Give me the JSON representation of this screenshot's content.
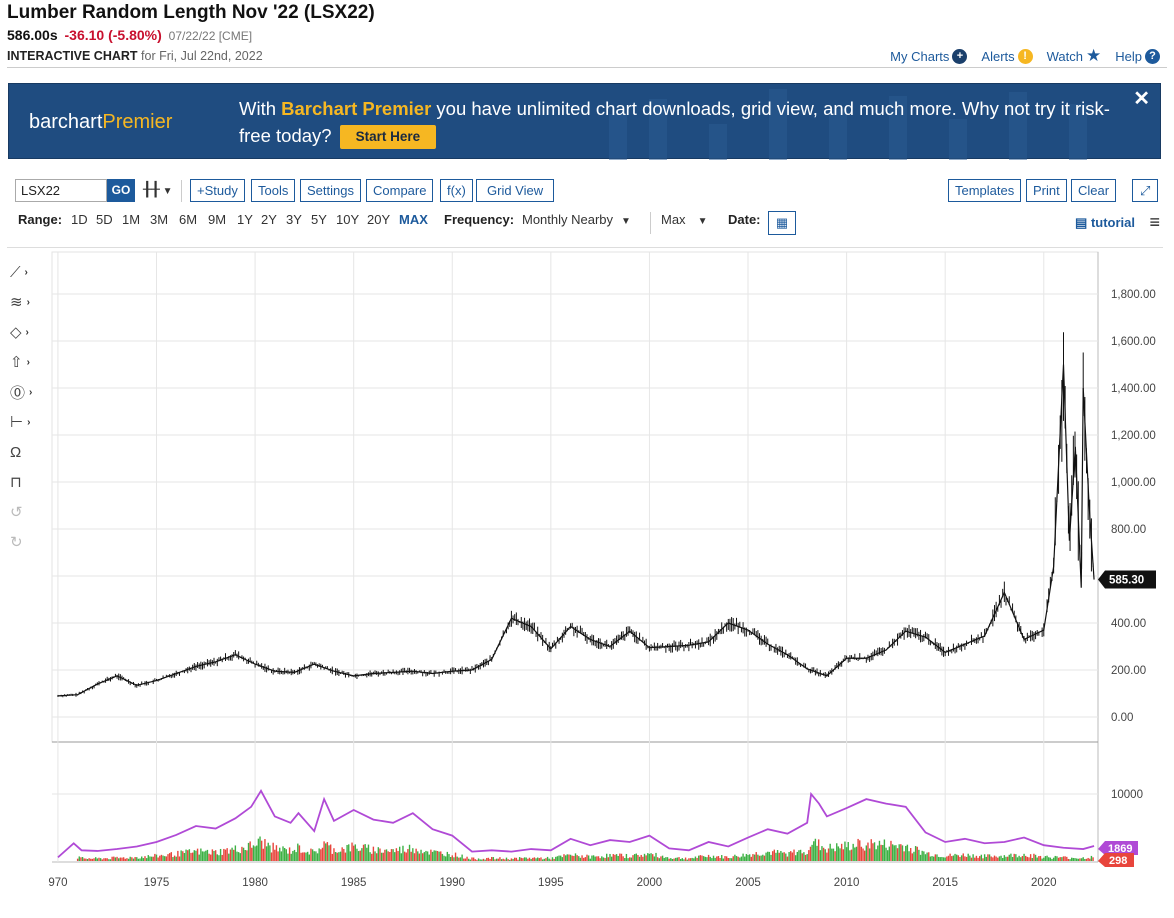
{
  "header": {
    "title": "Lumber Random Length Nov '22 (LSX22)",
    "last_price": "586.00s",
    "change": "-36.10 (-5.80%)",
    "quote_date": "07/22/22 [CME]",
    "interactive_chart_label": "INTERACTIVE CHART",
    "for_date": "for Fri, Jul 22nd, 2022"
  },
  "top_links": {
    "my_charts": "My Charts",
    "alerts": "Alerts",
    "watch": "Watch",
    "help": "Help"
  },
  "banner": {
    "brand_main": "barchart",
    "brand_accent": "Premier",
    "message_pre": "With ",
    "message_highlight": "Barchart Premier",
    "message_post": " you have unlimited chart downloads, grid view, and much more. Why not try it risk-free today?",
    "cta": "Start Here",
    "close": "✕"
  },
  "toolbar": {
    "symbol": "LSX22",
    "go": "GO",
    "buttons": [
      "+Study",
      "Tools",
      "Settings",
      "Compare",
      "f(x)",
      "Grid View"
    ],
    "right_buttons": [
      "Templates",
      "Print",
      "Clear"
    ],
    "expand": "⤢"
  },
  "range_bar": {
    "range_label": "Range:",
    "ranges": [
      "1D",
      "5D",
      "1M",
      "3M",
      "6M",
      "9M",
      "1Y",
      "2Y",
      "3Y",
      "5Y",
      "10Y",
      "20Y",
      "MAX"
    ],
    "active_range": "MAX",
    "frequency_label": "Frequency:",
    "frequency_value": "Monthly Nearby",
    "period_value": "Max",
    "date_label": "Date:",
    "tutorial": "tutorial"
  },
  "left_tools": [
    "line-tool-icon",
    "fib-tool-icon",
    "shape-tool-icon",
    "arrow-tool-icon",
    "label-tool-icon",
    "measure-tool-icon",
    "magnet-icon",
    "lock-icon",
    "undo-icon",
    "redo-icon"
  ],
  "colors": {
    "accent": "#1d5a9c",
    "negative": "#c8102e",
    "banner_bg": "#1f4c80",
    "premier_gold": "#f6b722",
    "open_interest_line": "#b04ad6",
    "volume_up": "#3cb043",
    "volume_down": "#e8453c"
  },
  "chart_data": {
    "type": "line",
    "series_type": "price-bars",
    "frequency": "Monthly",
    "price_axis": {
      "ticks": [
        "1,800.00",
        "1,600.00",
        "1,400.00",
        "1,200.00",
        "1,000.00",
        "800.00",
        "400.00",
        "200.00",
        "0.00"
      ],
      "ylim": [
        0,
        1800
      ]
    },
    "last_price_label": "585.30",
    "x_ticks": [
      "970",
      "1975",
      "1980",
      "1985",
      "1990",
      "1995",
      "2000",
      "2005",
      "2010",
      "2015",
      "2020"
    ],
    "price": {
      "x": [
        1970,
        1971,
        1972,
        1973,
        1974,
        1975,
        1976,
        1977,
        1978,
        1979,
        1980,
        1981,
        1982,
        1983,
        1984,
        1985,
        1986,
        1987,
        1988,
        1989,
        1990,
        1991,
        1992,
        1993,
        1994,
        1995,
        1996,
        1997,
        1998,
        1999,
        2000,
        2001,
        2002,
        2003,
        2004,
        2005,
        2006,
        2007,
        2008,
        2009,
        2010,
        2011,
        2012,
        2013,
        2014,
        2015,
        2016,
        2017,
        2018,
        2019,
        2020,
        2020.5,
        2021,
        2021.3,
        2021.6,
        2021.9,
        2022,
        2022.3,
        2022.55
      ],
      "close": [
        90,
        95,
        140,
        175,
        135,
        155,
        185,
        215,
        235,
        265,
        225,
        195,
        190,
        225,
        195,
        175,
        185,
        190,
        195,
        185,
        195,
        200,
        245,
        420,
        385,
        290,
        385,
        330,
        300,
        365,
        295,
        300,
        305,
        320,
        400,
        370,
        310,
        265,
        205,
        175,
        250,
        250,
        285,
        365,
        340,
        275,
        310,
        345,
        530,
        330,
        370,
        640,
        1500,
        750,
        1150,
        550,
        1400,
        900,
        585
      ]
    },
    "volume_axis": {
      "ticks": [
        "10000"
      ]
    },
    "open_interest_label": "1869",
    "volume_label": "298",
    "open_interest": {
      "x": [
        1970,
        1970.8,
        1971.2,
        1972,
        1973,
        1974,
        1975,
        1976,
        1977,
        1978,
        1979,
        1979.8,
        1980.3,
        1981,
        1981.8,
        1982.2,
        1983,
        1983.5,
        1984,
        1985,
        1986,
        1987,
        1988,
        1989,
        1990,
        1991,
        1992,
        1993,
        1994,
        1995,
        1996,
        1997,
        1998,
        1999,
        2000,
        2001,
        2002,
        2003,
        2004,
        2005,
        2006,
        2007,
        2008,
        2008.2,
        2008.6,
        2009,
        2010,
        2011,
        2012,
        2013,
        2014,
        2015,
        2016,
        2017,
        2018,
        2019,
        2020,
        2021,
        2022,
        2022.55
      ],
      "values": [
        100,
        2300,
        1200,
        1100,
        1400,
        1800,
        2500,
        3600,
        5000,
        4600,
        6200,
        8000,
        10500,
        6500,
        5500,
        7000,
        4200,
        9200,
        5800,
        7500,
        6000,
        5500,
        7000,
        4500,
        3500,
        1000,
        1200,
        1000,
        1400,
        1200,
        3000,
        2000,
        2800,
        2500,
        3500,
        1500,
        1200,
        2500,
        1800,
        3200,
        4500,
        3800,
        5500,
        10000,
        8500,
        6500,
        7800,
        9200,
        8500,
        8000,
        4000,
        2500,
        3000,
        2300,
        2500,
        3200,
        2000,
        1600,
        1400,
        1869
      ]
    }
  }
}
